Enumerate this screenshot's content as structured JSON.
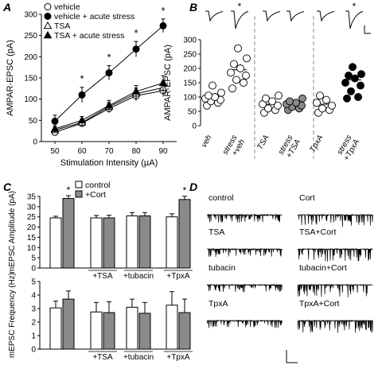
{
  "panels": {
    "A": "A",
    "B": "B",
    "C": "C",
    "D": "D"
  },
  "chart_data": [
    {
      "panel": "A",
      "type": "line",
      "xlabel": "Stimulation Intensity (µA)",
      "ylabel": "AMPAR-EPSC (pA)",
      "x": [
        50,
        60,
        70,
        80,
        90
      ],
      "xlim": [
        45,
        95
      ],
      "ylim": [
        0,
        300
      ],
      "yticks": [
        0,
        50,
        100,
        150,
        200,
        250,
        300
      ],
      "significance": [
        60,
        70,
        80,
        90
      ],
      "sig_mark": "*",
      "legend_position": "top-left",
      "series": [
        {
          "name": "vehicle",
          "marker": "circle-open",
          "values": [
            22,
            43,
            78,
            108,
            120
          ],
          "err": [
            6,
            8,
            10,
            12,
            14
          ]
        },
        {
          "name": "vehicle + acute stress",
          "marker": "circle-filled",
          "values": [
            48,
            110,
            162,
            218,
            273
          ],
          "err": [
            14,
            18,
            17,
            18,
            16
          ]
        },
        {
          "name": "TSA",
          "marker": "triangle-open",
          "values": [
            27,
            45,
            82,
            113,
            127
          ],
          "err": [
            6,
            8,
            10,
            13,
            15
          ]
        },
        {
          "name": "TSA + acute stress",
          "marker": "triangle-filled",
          "values": [
            30,
            50,
            85,
            118,
            138
          ],
          "err": [
            7,
            9,
            12,
            14,
            17
          ]
        }
      ]
    },
    {
      "panel": "B",
      "type": "scatter",
      "ylabel": "AMPAR-EPSC (pA)",
      "ylim": [
        0,
        300
      ],
      "yticks": [
        0,
        50,
        100,
        150,
        200,
        250,
        300
      ],
      "sig_mark": "*",
      "groups": [
        {
          "label": "veh",
          "fill": "open",
          "mean": 93,
          "points": [
            70,
            80,
            85,
            90,
            95,
            100,
            105,
            115,
            140
          ]
        },
        {
          "label": "stress +veh",
          "fill": "open",
          "mean": 195,
          "points": [
            130,
            150,
            160,
            175,
            185,
            200,
            215,
            235,
            270
          ]
        },
        {
          "label": "TSA",
          "fill": "open",
          "mean": 75,
          "points": [
            45,
            55,
            60,
            70,
            75,
            85,
            95,
            105
          ]
        },
        {
          "label": "stress +TSA",
          "fill": "gray",
          "mean": 75,
          "points": [
            55,
            60,
            65,
            70,
            75,
            80,
            85,
            95
          ]
        },
        {
          "label": "TpxA",
          "fill": "open",
          "mean": 75,
          "points": [
            45,
            55,
            60,
            70,
            80,
            90,
            105
          ]
        },
        {
          "label": "stress +TpxA",
          "fill": "filled",
          "mean": 160,
          "points": [
            95,
            100,
            120,
            140,
            150,
            165,
            175,
            180,
            205
          ]
        }
      ],
      "significant_groups": [
        "stress +veh",
        "stress +TpxA"
      ]
    },
    {
      "panel": "C-top",
      "type": "bar",
      "ylabel": "mEPSC Amplitude (pA)",
      "ylim": [
        0,
        35
      ],
      "yticks": [
        0,
        5,
        10,
        15,
        20,
        25,
        30,
        35
      ],
      "legend_position": "top",
      "series_names": [
        "control",
        "+Cort"
      ],
      "categories": [
        "",
        "+TSA",
        "+tubacin",
        "+TpxA"
      ],
      "control": [
        24.5,
        24.5,
        25.5,
        25
      ],
      "control_err": [
        0.8,
        1.2,
        1.6,
        1.5
      ],
      "cort": [
        34,
        24.5,
        25.5,
        33.5
      ],
      "cort_err": [
        1.4,
        1.3,
        1.6,
        1.6
      ],
      "significant_categories": [
        0,
        3
      ],
      "sig_mark": "*"
    },
    {
      "panel": "C-bottom",
      "type": "bar",
      "ylabel": "mEPSC Frequency (Hz)",
      "ylim": [
        0,
        5
      ],
      "yticks": [
        0,
        1,
        2,
        3,
        4,
        5
      ],
      "categories": [
        "",
        "+TSA",
        "+tubacin",
        "+TpxA"
      ],
      "control": [
        3.05,
        2.75,
        3.1,
        3.25
      ],
      "control_err": [
        0.5,
        0.7,
        0.6,
        1.0
      ],
      "cort": [
        3.7,
        2.7,
        2.65,
        2.7
      ],
      "cort_err": [
        0.6,
        0.8,
        0.8,
        1.0
      ]
    }
  ],
  "panel_D": {
    "traces": [
      {
        "label": "control",
        "column": 0
      },
      {
        "label": "Cort",
        "column": 1
      },
      {
        "label": "TSA",
        "column": 0
      },
      {
        "label": "TSA+Cort",
        "column": 1
      },
      {
        "label": "tubacin",
        "column": 0
      },
      {
        "label": "tubacin+Cort",
        "column": 1
      },
      {
        "label": "TpxA",
        "column": 0
      },
      {
        "label": "TpxA+Cort",
        "column": 1
      }
    ]
  },
  "colors": {
    "ink": "#000000",
    "gray_bar": "#8a8a8a",
    "gray_marker": "#8a8a8a",
    "dash": "#888888"
  }
}
